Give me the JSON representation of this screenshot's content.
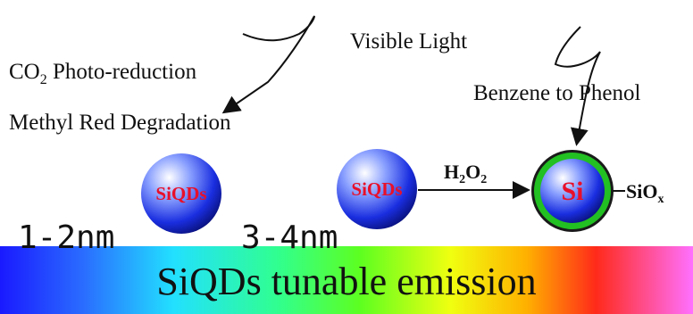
{
  "labels": {
    "co2_reduction": {
      "main": "CO",
      "sub": "2",
      "rest": " Photo-reduction"
    },
    "methyl_red": "Methyl Red Degradation",
    "visible_light": "Visible Light",
    "benzene_phenol": "Benzene to Phenol",
    "h2o2": {
      "h": "H",
      "sub1": "2",
      "o": "O",
      "sub2": "2"
    },
    "siox": {
      "main": "SiO",
      "sub": "x"
    }
  },
  "particles": [
    {
      "label": "SiQDs",
      "size": "1-2nm"
    },
    {
      "label": "SiQDs",
      "size": "3-4nm"
    },
    {
      "label": "Si"
    }
  ],
  "emission": "SiQDs tunable emission"
}
